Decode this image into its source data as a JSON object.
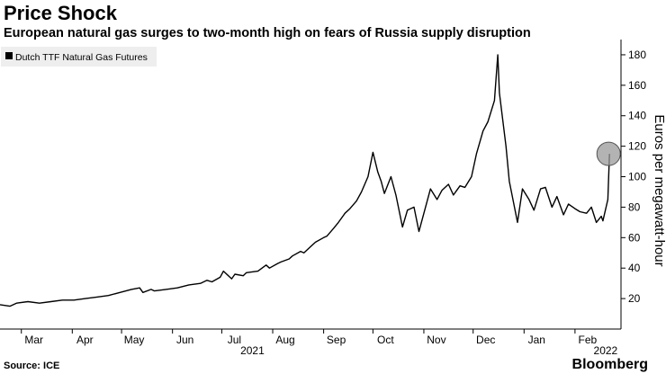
{
  "title": "Price Shock",
  "subtitle": "European natural gas surges to two-month high on fears of Russia supply disruption",
  "source": "Source: ICE",
  "brand": "Bloomberg",
  "chart_data": {
    "type": "line",
    "title": "Price Shock",
    "subtitle": "European natural gas surges to two-month high on fears of Russia supply disruption",
    "ylabel": "Euros per megawatt-hour",
    "xlabel": "",
    "ylim": [
      0,
      190
    ],
    "y_ticks": [
      20,
      40,
      60,
      80,
      100,
      120,
      140,
      160,
      180
    ],
    "x_ticks": [
      {
        "date": "2021-03-01",
        "label": "Mar"
      },
      {
        "date": "2021-04-01",
        "label": "Apr"
      },
      {
        "date": "2021-05-01",
        "label": "May"
      },
      {
        "date": "2021-06-01",
        "label": "Jun"
      },
      {
        "date": "2021-07-01",
        "label": "Jul"
      },
      {
        "date": "2021-08-01",
        "label": "Aug"
      },
      {
        "date": "2021-09-01",
        "label": "Sep"
      },
      {
        "date": "2021-10-01",
        "label": "Oct"
      },
      {
        "date": "2021-11-01",
        "label": "Nov"
      },
      {
        "date": "2021-12-01",
        "label": "Dec"
      },
      {
        "date": "2022-01-01",
        "label": "Jan"
      },
      {
        "date": "2022-02-01",
        "label": "Feb"
      }
    ],
    "year_labels": [
      {
        "date": "2021-07-01",
        "label": "2021"
      },
      {
        "date": "2022-02-01",
        "label": "2022"
      }
    ],
    "x_range": [
      "2021-02-16",
      "2022-03-01"
    ],
    "grid": false,
    "legend_position": "top-left",
    "series": [
      {
        "name": "Dutch TTF Natural Gas Futures",
        "color": "#000000",
        "x": [
          "2021-02-16",
          "2021-02-22",
          "2021-02-26",
          "2021-03-05",
          "2021-03-12",
          "2021-03-19",
          "2021-03-26",
          "2021-04-02",
          "2021-04-09",
          "2021-04-16",
          "2021-04-23",
          "2021-04-30",
          "2021-05-07",
          "2021-05-12",
          "2021-05-14",
          "2021-05-19",
          "2021-05-21",
          "2021-05-28",
          "2021-06-04",
          "2021-06-11",
          "2021-06-18",
          "2021-06-22",
          "2021-06-25",
          "2021-06-30",
          "2021-07-02",
          "2021-07-07",
          "2021-07-09",
          "2021-07-14",
          "2021-07-16",
          "2021-07-23",
          "2021-07-28",
          "2021-07-30",
          "2021-08-04",
          "2021-08-06",
          "2021-08-11",
          "2021-08-13",
          "2021-08-18",
          "2021-08-20",
          "2021-08-25",
          "2021-08-27",
          "2021-09-01",
          "2021-09-03",
          "2021-09-07",
          "2021-09-10",
          "2021-09-14",
          "2021-09-17",
          "2021-09-21",
          "2021-09-24",
          "2021-09-28",
          "2021-10-01",
          "2021-10-04",
          "2021-10-06",
          "2021-10-08",
          "2021-10-12",
          "2021-10-15",
          "2021-10-19",
          "2021-10-22",
          "2021-10-26",
          "2021-10-29",
          "2021-11-02",
          "2021-11-05",
          "2021-11-09",
          "2021-11-12",
          "2021-11-16",
          "2021-11-19",
          "2021-11-23",
          "2021-11-26",
          "2021-11-30",
          "2021-12-03",
          "2021-12-07",
          "2021-12-10",
          "2021-12-14",
          "2021-12-16",
          "2021-12-17",
          "2021-12-21",
          "2021-12-23",
          "2021-12-28",
          "2021-12-31",
          "2022-01-04",
          "2022-01-07",
          "2022-01-11",
          "2022-01-14",
          "2022-01-18",
          "2022-01-21",
          "2022-01-25",
          "2022-01-28",
          "2022-02-01",
          "2022-02-04",
          "2022-02-08",
          "2022-02-11",
          "2022-02-14",
          "2022-02-17",
          "2022-02-18",
          "2022-02-21",
          "2022-02-22"
        ],
        "values": [
          16,
          15,
          17,
          18,
          17,
          18,
          19,
          19,
          20,
          21,
          22,
          24,
          26,
          27,
          24,
          26,
          25,
          26,
          27,
          29,
          30,
          32,
          31,
          34,
          38,
          33,
          36,
          35,
          37,
          38,
          42,
          40,
          43,
          44,
          46,
          48,
          51,
          50,
          55,
          57,
          60,
          61,
          66,
          70,
          76,
          79,
          84,
          90,
          100,
          116,
          103,
          97,
          89,
          100,
          88,
          67,
          78,
          80,
          64,
          80,
          92,
          85,
          91,
          95,
          88,
          94,
          93,
          100,
          115,
          130,
          136,
          150,
          180,
          155,
          120,
          97,
          70,
          92,
          85,
          78,
          92,
          93,
          80,
          87,
          75,
          82,
          79,
          77,
          76,
          80,
          70,
          74,
          71,
          85,
          115
        ]
      }
    ],
    "annotations": [
      {
        "type": "circle-marker",
        "x": "2022-02-22",
        "y": 115,
        "color": "#999999"
      }
    ]
  }
}
